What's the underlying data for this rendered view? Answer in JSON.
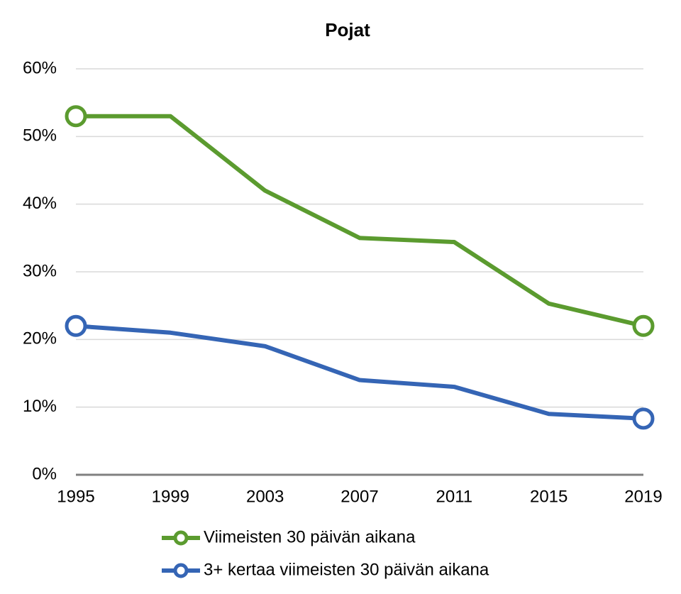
{
  "chart_data": {
    "type": "line",
    "title": "Pojat",
    "x": [
      1995,
      1999,
      2003,
      2007,
      2011,
      2015,
      2019
    ],
    "xlim": [
      1995,
      2019
    ],
    "xticks": [
      1995,
      1999,
      2003,
      2007,
      2011,
      2015,
      2019
    ],
    "ylim": [
      0,
      60
    ],
    "yticks": [
      {
        "value": 0,
        "label": "0%"
      },
      {
        "value": 10,
        "label": "10%"
      },
      {
        "value": 20,
        "label": "20%"
      },
      {
        "value": 30,
        "label": "30%"
      },
      {
        "value": 40,
        "label": "40%"
      },
      {
        "value": 50,
        "label": "50%"
      },
      {
        "value": 60,
        "label": "60%"
      }
    ],
    "grid": true,
    "legend": "bottom",
    "series": [
      {
        "name": "Viimeisten 30 päivän aikana",
        "color": "#5b9b2f",
        "values": [
          53,
          53,
          42,
          35,
          34.4,
          25.3,
          22
        ]
      },
      {
        "name": "3+ kertaa viimeisten 30 päivän aikana",
        "color": "#3565b5",
        "values": [
          22,
          21,
          19,
          14,
          13,
          9,
          8.3
        ]
      }
    ]
  }
}
